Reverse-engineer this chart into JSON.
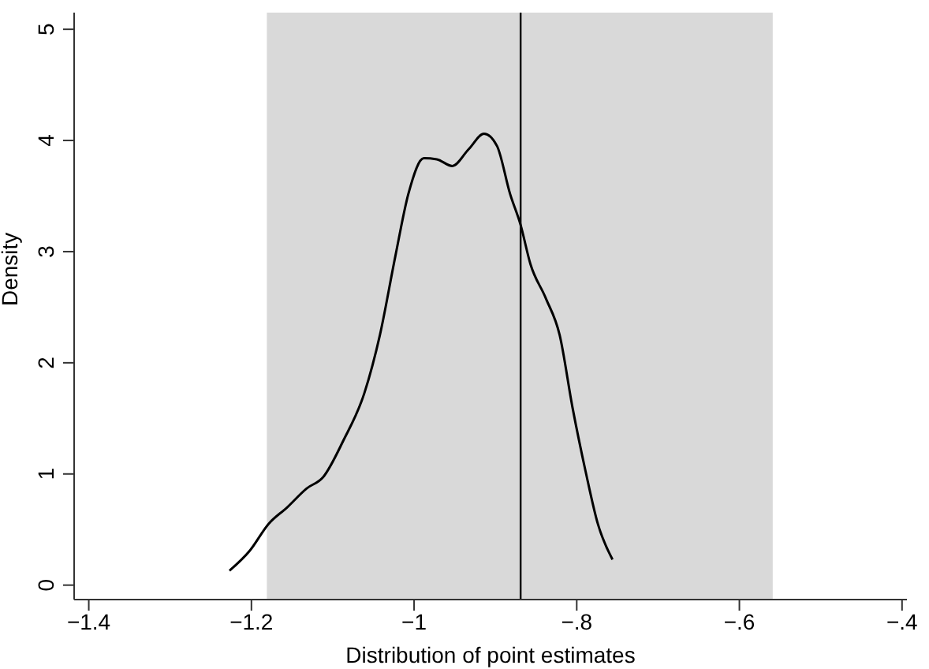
{
  "chart_data": {
    "type": "line",
    "xlabel": "Distribution of point estimates",
    "ylabel": "Density",
    "x": [
      -1.227,
      -1.202,
      -1.179,
      -1.156,
      -1.132,
      -1.112,
      -1.087,
      -1.061,
      -1.042,
      -1.023,
      -1.007,
      -0.988,
      -0.972,
      -0.953,
      -0.933,
      -0.914,
      -0.898,
      -0.882,
      -0.869,
      -0.857,
      -0.838,
      -0.821,
      -0.805,
      -0.789,
      -0.774,
      -0.756
    ],
    "series": [
      {
        "color": "#000000",
        "values": [
          0.13,
          0.31,
          0.55,
          0.7,
          0.87,
          0.97,
          1.3,
          1.73,
          2.25,
          2.96,
          3.52,
          3.84,
          3.83,
          3.77,
          3.92,
          4.06,
          3.95,
          3.52,
          3.24,
          2.89,
          2.58,
          2.25,
          1.59,
          1.02,
          0.55,
          0.23
        ]
      }
    ],
    "xlim": [
      -1.418,
      -0.394
    ],
    "xticks": [
      {
        "value": -1.4,
        "label": "−1.4"
      },
      {
        "value": -1.2,
        "label": "−1.2"
      },
      {
        "value": -1,
        "label": "−1"
      },
      {
        "value": -0.8,
        "label": "−.8"
      },
      {
        "value": -0.6,
        "label": "−.6"
      },
      {
        "value": -0.4,
        "label": "−.4"
      }
    ],
    "ylim": [
      -0.13,
      5.15
    ],
    "yticks": [
      0,
      1,
      2,
      3,
      4,
      5
    ],
    "ref_lines": [
      {
        "axis": "x",
        "value": -0.869,
        "color": "#000000"
      }
    ],
    "bands": [
      {
        "axis": "x",
        "from": -1.181,
        "to": -0.559,
        "color": "#d9d9d9"
      }
    ],
    "grid": false,
    "legend": false,
    "marker": "none",
    "line_style": "solid"
  }
}
